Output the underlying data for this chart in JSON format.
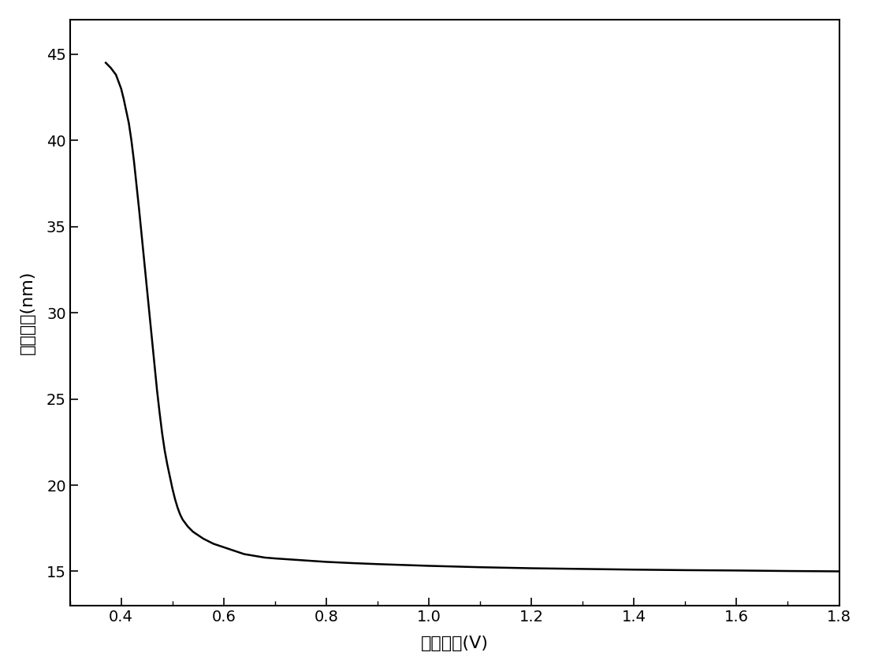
{
  "xlabel": "驱动电压(V)",
  "ylabel": "平均波长(nm)",
  "xlim": [
    0.3,
    1.8
  ],
  "ylim": [
    13,
    47
  ],
  "xticks": [
    0.4,
    0.6,
    0.8,
    1.0,
    1.2,
    1.4,
    1.6,
    1.8
  ],
  "yticks": [
    15,
    20,
    25,
    30,
    35,
    40,
    45
  ],
  "line_color": "#000000",
  "line_width": 1.8,
  "background_color": "#ffffff",
  "curve_x": [
    0.37,
    0.38,
    0.39,
    0.395,
    0.4,
    0.405,
    0.41,
    0.415,
    0.42,
    0.425,
    0.43,
    0.435,
    0.44,
    0.445,
    0.45,
    0.455,
    0.46,
    0.465,
    0.47,
    0.475,
    0.48,
    0.485,
    0.49,
    0.495,
    0.5,
    0.505,
    0.51,
    0.515,
    0.52,
    0.525,
    0.53,
    0.54,
    0.55,
    0.56,
    0.58,
    0.6,
    0.62,
    0.64,
    0.66,
    0.68,
    0.7,
    0.75,
    0.8,
    0.85,
    0.9,
    0.95,
    1.0,
    1.1,
    1.2,
    1.3,
    1.4,
    1.5,
    1.6,
    1.7,
    1.8
  ],
  "curve_y": [
    44.5,
    44.2,
    43.8,
    43.4,
    43.0,
    42.4,
    41.7,
    41.0,
    40.0,
    38.8,
    37.4,
    36.0,
    34.5,
    33.0,
    31.5,
    30.0,
    28.5,
    27.0,
    25.5,
    24.2,
    23.0,
    22.0,
    21.2,
    20.5,
    19.8,
    19.2,
    18.7,
    18.3,
    18.0,
    17.8,
    17.6,
    17.3,
    17.1,
    16.9,
    16.6,
    16.4,
    16.2,
    16.0,
    15.9,
    15.8,
    15.75,
    15.65,
    15.55,
    15.48,
    15.42,
    15.37,
    15.32,
    15.24,
    15.18,
    15.14,
    15.1,
    15.07,
    15.05,
    15.02,
    15.0
  ]
}
